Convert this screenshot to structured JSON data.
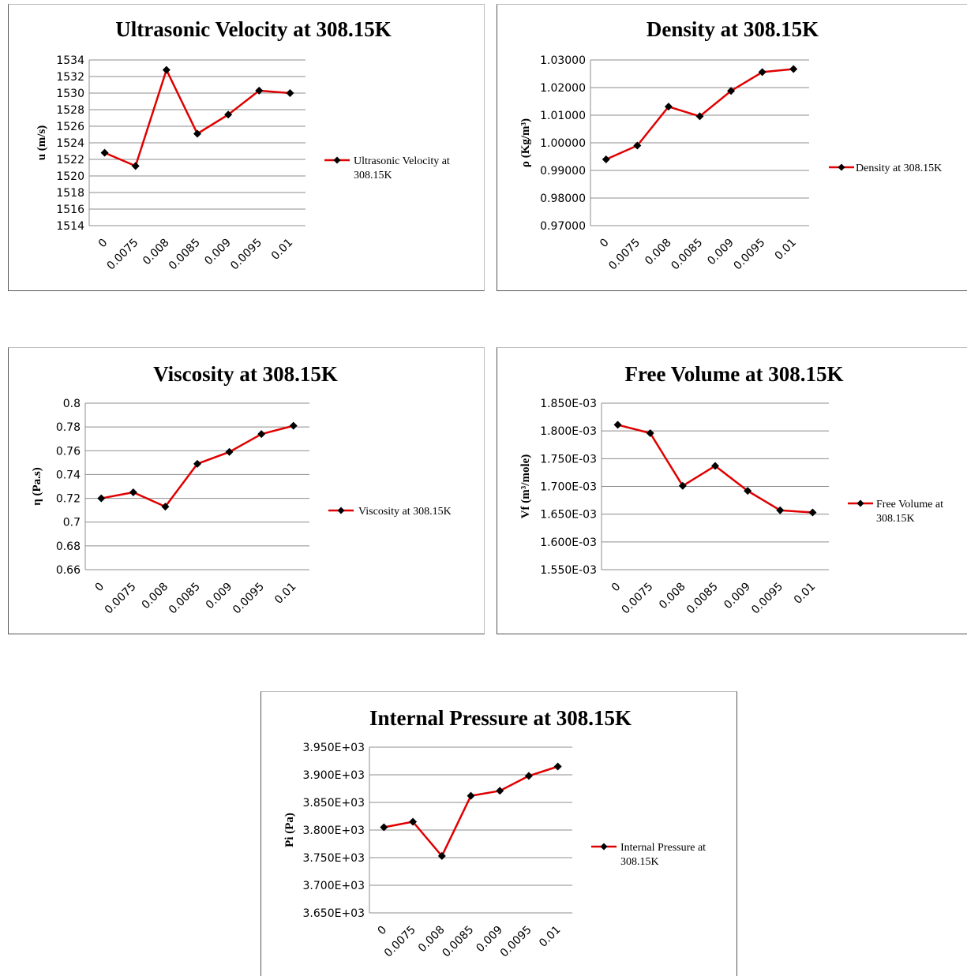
{
  "colors": {
    "line": "#e00000",
    "marker": "#000000",
    "grid": "#8c8c8c",
    "axis": "#8c8c8c",
    "text": "#000000"
  },
  "chart_data": [
    {
      "type": "line",
      "title": "Ultrasonic Velocity at 308.15K",
      "ylabel": "u (m/s)",
      "xlabel": "",
      "categories": [
        "0",
        "0.0075",
        "0.008",
        "0.0085",
        "0.009",
        "0.0095",
        "0.01"
      ],
      "series": [
        {
          "name": "Ultrasonic Velocity at 308.15K",
          "values": [
            1522.8,
            1521.2,
            1532.8,
            1525.1,
            1527.4,
            1530.3,
            1530.0
          ]
        }
      ],
      "ylim": [
        1514,
        1534
      ],
      "yticks": [
        "1514",
        "1516",
        "1518",
        "1520",
        "1522",
        "1524",
        "1526",
        "1528",
        "1530",
        "1532",
        "1534"
      ],
      "legend_lines": [
        "Ultrasonic Velocity at",
        "308.15K"
      ],
      "grid": true,
      "legend": "right"
    },
    {
      "type": "line",
      "title": "Density at 308.15K",
      "ylabel": "ρ (Kg/m³)",
      "xlabel": "",
      "categories": [
        "0",
        "0.0075",
        "0.008",
        "0.0085",
        "0.009",
        "0.0095",
        "0.01"
      ],
      "series": [
        {
          "name": "Density at 308.15K",
          "values": [
            0.994,
            0.999,
            1.0131,
            1.0096,
            1.0188,
            1.0256,
            1.0267
          ]
        }
      ],
      "ylim": [
        0.97,
        1.03
      ],
      "yticks": [
        "0.97000",
        "0.98000",
        "0.99000",
        "1.00000",
        "1.01000",
        "1.02000",
        "1.03000"
      ],
      "legend_lines": [
        "Density at 308.15K"
      ],
      "grid": true,
      "legend": "right"
    },
    {
      "type": "line",
      "title": "Viscosity at 308.15K",
      "ylabel": "η (Pa.s)",
      "xlabel": "",
      "categories": [
        "0",
        "0.0075",
        "0.008",
        "0.0085",
        "0.009",
        "0.0095",
        "0.01"
      ],
      "series": [
        {
          "name": "Viscosity at 308.15K",
          "values": [
            0.72,
            0.725,
            0.713,
            0.749,
            0.759,
            0.774,
            0.781
          ]
        }
      ],
      "ylim": [
        0.66,
        0.8
      ],
      "yticks": [
        "0.66",
        "0.68",
        "0.7",
        "0.72",
        "0.74",
        "0.76",
        "0.78",
        "0.8"
      ],
      "legend_lines": [
        "Viscosity at 308.15K"
      ],
      "grid": true,
      "legend": "right"
    },
    {
      "type": "line",
      "title": "Free Volume at 308.15K",
      "ylabel": "Vf (m³/mole)",
      "xlabel": "",
      "categories": [
        "0",
        "0.0075",
        "0.008",
        "0.0085",
        "0.009",
        "0.0095",
        "0.01"
      ],
      "series": [
        {
          "name": "Free Volume at 308.15K",
          "values": [
            0.001811,
            0.001796,
            0.001701,
            0.001737,
            0.001692,
            0.001657,
            0.001653
          ]
        }
      ],
      "ylim": [
        0.00155,
        0.00185
      ],
      "yticks": [
        "1.550E-03",
        "1.600E-03",
        "1.650E-03",
        "1.700E-03",
        "1.750E-03",
        "1.800E-03",
        "1.850E-03"
      ],
      "legend_lines": [
        "Free Volume at",
        "308.15K"
      ],
      "grid": true,
      "legend": "right"
    },
    {
      "type": "line",
      "title": "Internal Pressure at 308.15K",
      "ylabel": "Pi (Pa)",
      "xlabel": "",
      "categories": [
        "0",
        "0.0075",
        "0.008",
        "0.0085",
        "0.009",
        "0.0095",
        "0.01"
      ],
      "series": [
        {
          "name": "Internal Pressure at 308.15K",
          "values": [
            3805,
            3815,
            3753,
            3862,
            3871,
            3898,
            3915
          ]
        }
      ],
      "ylim": [
        3650,
        3950
      ],
      "yticks": [
        "3.650E+03",
        "3.700E+03",
        "3.750E+03",
        "3.800E+03",
        "3.850E+03",
        "3.900E+03",
        "3.950E+03"
      ],
      "legend_lines": [
        "Internal Pressure at",
        "308.15K"
      ],
      "grid": true,
      "legend": "right"
    }
  ]
}
